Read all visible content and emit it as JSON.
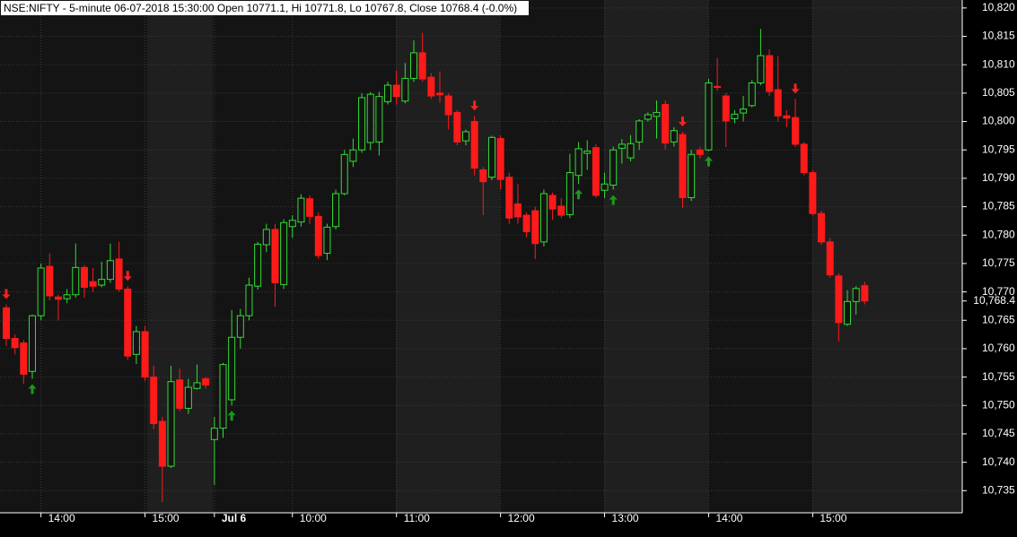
{
  "chart_data": {
    "type": "candlestick",
    "title": "NSE:NIFTY - 5-minute 06-07-2018 15:30:00 Open 10771.1, Hi 10771.8, Lo 10767.8, Close 10768.4 (-0.0%)",
    "categories": [
      null,
      null,
      null,
      null,
      "14:00",
      null,
      null,
      null,
      null,
      null,
      null,
      null,
      null,
      null,
      null,
      null,
      "15:00",
      null,
      null,
      null,
      null,
      null,
      null,
      null,
      "Jul 6",
      null,
      null,
      null,
      null,
      null,
      null,
      null,
      null,
      "10:00",
      null,
      null,
      null,
      null,
      null,
      null,
      null,
      null,
      null,
      null,
      null,
      "11:00",
      null,
      null,
      null,
      null,
      null,
      null,
      null,
      null,
      null,
      null,
      null,
      "12:00",
      null,
      null,
      null,
      null,
      null,
      null,
      null,
      null,
      null,
      null,
      null,
      "13:00",
      null,
      null,
      null,
      null,
      null,
      null,
      null,
      null,
      null,
      null,
      null,
      "14:00",
      null,
      null,
      null,
      null,
      null,
      null,
      null,
      null,
      null,
      null,
      null,
      "15:00",
      null,
      null,
      null,
      null,
      null,
      null
    ],
    "open": [
      10767.2,
      10761.8,
      10761,
      10756,
      10765.8,
      10774.5,
      10769.1,
      10768.8,
      10769.5,
      10774.3,
      10771.8,
      10771.2,
      10772.2,
      10775.8,
      10770.5,
      10759,
      10763,
      10755,
      10747.2,
      10739.3,
      10754.5,
      10749.5,
      10753,
      10754.7,
      10744,
      10746,
      10751,
      10762,
      10765.8,
      10771,
      10778.3,
      10781,
      10771.3,
      10781.5,
      10782.3,
      10786.4,
      10783.3,
      10776.8,
      10781.5,
      10787.3,
      10793,
      10795,
      10796.3,
      10796.4,
      10803.5,
      10806.4,
      10803.6,
      10807.6,
      10812.1,
      10807.8,
      10805,
      10804.5,
      10801.6,
      10796.6,
      10800,
      10791.5,
      10790.2,
      10797,
      10790.2,
      10785.5,
      10783.5,
      10784.3,
      10778.8,
      10787,
      10785.1,
      10783.6,
      10790.5,
      10794.4,
      10795.4,
      10787.9,
      10788.8,
      10795.3,
      10793.6,
      10796.4,
      10800.4,
      10800.9,
      10803,
      10796.4,
      10797.7,
      10786.6,
      10795,
      10795,
      10806.2,
      10804.5,
      10800.5,
      10801.5,
      10802.8,
      10806.8,
      10811.6,
      10805.6,
      10801,
      10800.7,
      10796,
      10791,
      10783.8,
      10778.8,
      10772.8,
      10764.3,
      10768.3,
      10771.1
    ],
    "high": [
      10767.8,
      10762.5,
      10761.5,
      10766,
      10775,
      10776.8,
      10769.5,
      10770.5,
      10778.5,
      10774.7,
      10774.2,
      10775.3,
      10778.5,
      10778.8,
      10771,
      10764,
      10764,
      10757,
      10748,
      10757,
      10756.5,
      10754.7,
      10757.2,
      10755,
      10748,
      10757.5,
      10766.8,
      10767,
      10772.5,
      10778.8,
      10782,
      10782,
      10782.8,
      10783.5,
      10787.2,
      10787,
      10784,
      10782,
      10788,
      10795,
      10797,
      10805,
      10805.2,
      10805.2,
      10807,
      10809,
      10810.3,
      10814.3,
      10815.6,
      10808.5,
      10808.8,
      10805,
      10802,
      10798.6,
      10801,
      10792,
      10797.5,
      10797.5,
      10791,
      10789,
      10784,
      10785,
      10788,
      10787.5,
      10786.5,
      10794.3,
      10796.4,
      10796.7,
      10796,
      10791,
      10795.6,
      10796.9,
      10797.6,
      10800.4,
      10801.6,
      10803.7,
      10803.7,
      10799,
      10798.2,
      10795,
      10795.5,
      10807.5,
      10811.2,
      10805,
      10802,
      10804.5,
      10807.3,
      10816.3,
      10812.7,
      10811.5,
      10802,
      10804,
      10796.4,
      10791.4,
      10784.3,
      10779.5,
      10773.3,
      10770.3,
      10771,
      10771.8
    ],
    "low": [
      10760.5,
      10759,
      10753.8,
      10754.7,
      10765,
      10768.5,
      10765,
      10768,
      10769,
      10769,
      10770,
      10770.8,
      10771.6,
      10770,
      10758,
      10757.3,
      10754.3,
      10745.8,
      10733,
      10739,
      10749,
      10748.5,
      10752.8,
      10753,
      10736,
      10744.3,
      10750,
      10760,
      10765,
      10770.4,
      10777,
      10767.4,
      10770.5,
      10779.5,
      10781.5,
      10782,
      10775.8,
      10775.6,
      10781,
      10787,
      10792,
      10794.5,
      10795,
      10794,
      10803,
      10803,
      10803.2,
      10807,
      10807,
      10804,
      10803.3,
      10798.6,
      10795.8,
      10795.8,
      10790.5,
      10783.5,
      10789.7,
      10788,
      10782,
      10782,
      10779.6,
      10775.8,
      10778,
      10782.7,
      10783,
      10783,
      10789,
      10791.5,
      10786.6,
      10786.5,
      10788,
      10792.6,
      10793,
      10795,
      10800,
      10797,
      10795,
      10795.6,
      10784.8,
      10786,
      10793.5,
      10794.8,
      10805.4,
      10795.5,
      10799.7,
      10800,
      10802.5,
      10806.4,
      10804.5,
      10800,
      10799,
      10795.5,
      10790.5,
      10783.5,
      10778.3,
      10772.5,
      10761.3,
      10764,
      10766,
      10767.8
    ],
    "close": [
      10761.8,
      10760.2,
      10755.5,
      10765.8,
      10774.2,
      10769.3,
      10768.7,
      10769.5,
      10774.3,
      10770.8,
      10771,
      10772.2,
      10775.5,
      10770.5,
      10758.7,
      10763,
      10755,
      10746.8,
      10739.3,
      10754.2,
      10749.5,
      10753.2,
      10754,
      10753.6,
      10746,
      10757.2,
      10762,
      10765.8,
      10771.2,
      10778.4,
      10781,
      10771.6,
      10782.2,
      10782.6,
      10786.5,
      10783.3,
      10776.4,
      10781.4,
      10787.3,
      10794.2,
      10795,
      10804.2,
      10804.8,
      10804.4,
      10806.4,
      10804.4,
      10807.6,
      10812.1,
      10807.5,
      10804.5,
      10804.7,
      10801.2,
      10796.4,
      10798.2,
      10791.8,
      10789.4,
      10797.2,
      10789.8,
      10783,
      10783.2,
      10780.6,
      10778.5,
      10787.3,
      10784.6,
      10783.5,
      10791,
      10795.2,
      10794.8,
      10787,
      10789,
      10795,
      10796,
      10796.1,
      10800.1,
      10801.2,
      10801.6,
      10796.2,
      10798.4,
      10786.6,
      10794.2,
      10794.2,
      10806.8,
      10806,
      10800.1,
      10801.3,
      10802.2,
      10806.8,
      10811.6,
      10805.3,
      10801,
      10800.6,
      10796,
      10791,
      10783.8,
      10778.8,
      10773,
      10764.6,
      10768.3,
      10770.6,
      10768.4
    ],
    "up_color": "#33dd33",
    "down_color": "#ff1a1a",
    "buy_signals": [
      3,
      26,
      66,
      70,
      81
    ],
    "sell_signals": [
      0,
      14,
      54,
      78,
      91
    ],
    "buy_color": "#1a9a1a",
    "sell_color": "#ff2020",
    "last_price": 10768.4,
    "last_price_label": "10,768.4",
    "ylim": [
      10731.1,
      10821.4
    ],
    "yticks": [
      {
        "value": 10735,
        "label": "10,735"
      },
      {
        "value": 10740,
        "label": "10,740"
      },
      {
        "value": 10745,
        "label": "10,745"
      },
      {
        "value": 10750,
        "label": "10,750"
      },
      {
        "value": 10755,
        "label": "10,755"
      },
      {
        "value": 10760,
        "label": "10,760"
      },
      {
        "value": 10765,
        "label": "10,765"
      },
      {
        "value": 10770,
        "label": "10,770"
      },
      {
        "value": 10775,
        "label": "10,775"
      },
      {
        "value": 10780,
        "label": "10,780"
      },
      {
        "value": 10785,
        "label": "10,785"
      },
      {
        "value": 10790,
        "label": "10,790"
      },
      {
        "value": 10795,
        "label": "10,795"
      },
      {
        "value": 10800,
        "label": "10,800"
      },
      {
        "value": 10805,
        "label": "10,805"
      },
      {
        "value": 10810,
        "label": "10,810"
      },
      {
        "value": 10815,
        "label": "10,815"
      },
      {
        "value": 10820,
        "label": "10,820"
      }
    ],
    "grid": true
  }
}
